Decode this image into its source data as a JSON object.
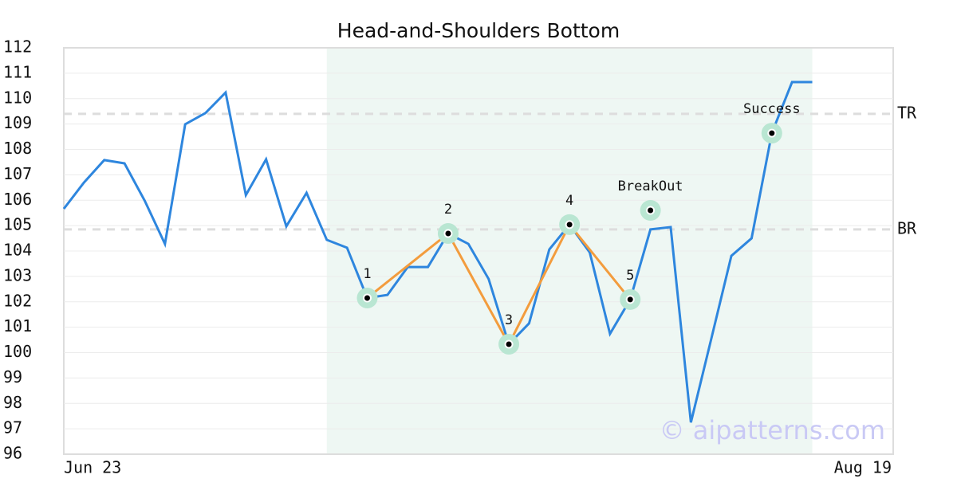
{
  "chart_data": {
    "type": "line",
    "title": "Head-and-Shoulders Bottom",
    "categories": [
      "Jun 23",
      null,
      null,
      null,
      null,
      null,
      null,
      null,
      null,
      null,
      null,
      null,
      null,
      null,
      null,
      null,
      null,
      null,
      null,
      null,
      null,
      null,
      null,
      null,
      null,
      null,
      null,
      null,
      null,
      null,
      null,
      null,
      null,
      null,
      null,
      null,
      null,
      null,
      null,
      null,
      null,
      "Aug 19"
    ],
    "series": [
      {
        "color": "#2e86de",
        "values": [
          105.66,
          106.7,
          107.58,
          107.45,
          105.98,
          104.28,
          108.99,
          109.43,
          110.24,
          106.2,
          107.61,
          104.97,
          106.29,
          104.44,
          104.13,
          102.15,
          102.27,
          103.37,
          103.37,
          104.69,
          104.28,
          102.9,
          100.33,
          101.15,
          104.06,
          105.04,
          103.94,
          100.74,
          102.09,
          104.85,
          104.94,
          97.25,
          100.52,
          103.81,
          104.5,
          108.64,
          110.65,
          110.65,
          null,
          null,
          null,
          null
        ]
      }
    ],
    "pattern": [
      {
        "label": "1",
        "index": 15,
        "value": 102.15
      },
      {
        "label": "2",
        "index": 19,
        "value": 104.69
      },
      {
        "label": "3",
        "index": 22,
        "value": 100.33
      },
      {
        "label": "4",
        "index": 25,
        "value": 105.04
      },
      {
        "label": "5",
        "index": 28,
        "value": 102.09
      }
    ],
    "pattern_color": "#f39c3d",
    "events": [
      {
        "label": "BreakOut",
        "index": 29,
        "value": 105.6
      },
      {
        "label": "Success",
        "index": 35,
        "value": 108.64
      }
    ],
    "levels": [
      {
        "label": "TR",
        "value": 109.4
      },
      {
        "label": "BR",
        "value": 104.85
      }
    ],
    "highlight": [
      13,
      37
    ],
    "watermark": "© aipatterns.com",
    "ylim": [
      96,
      112
    ],
    "yticks": [
      96,
      97,
      98,
      99,
      100,
      101,
      102,
      103,
      104,
      105,
      106,
      107,
      108,
      109,
      110,
      111,
      112
    ],
    "grid": true
  }
}
